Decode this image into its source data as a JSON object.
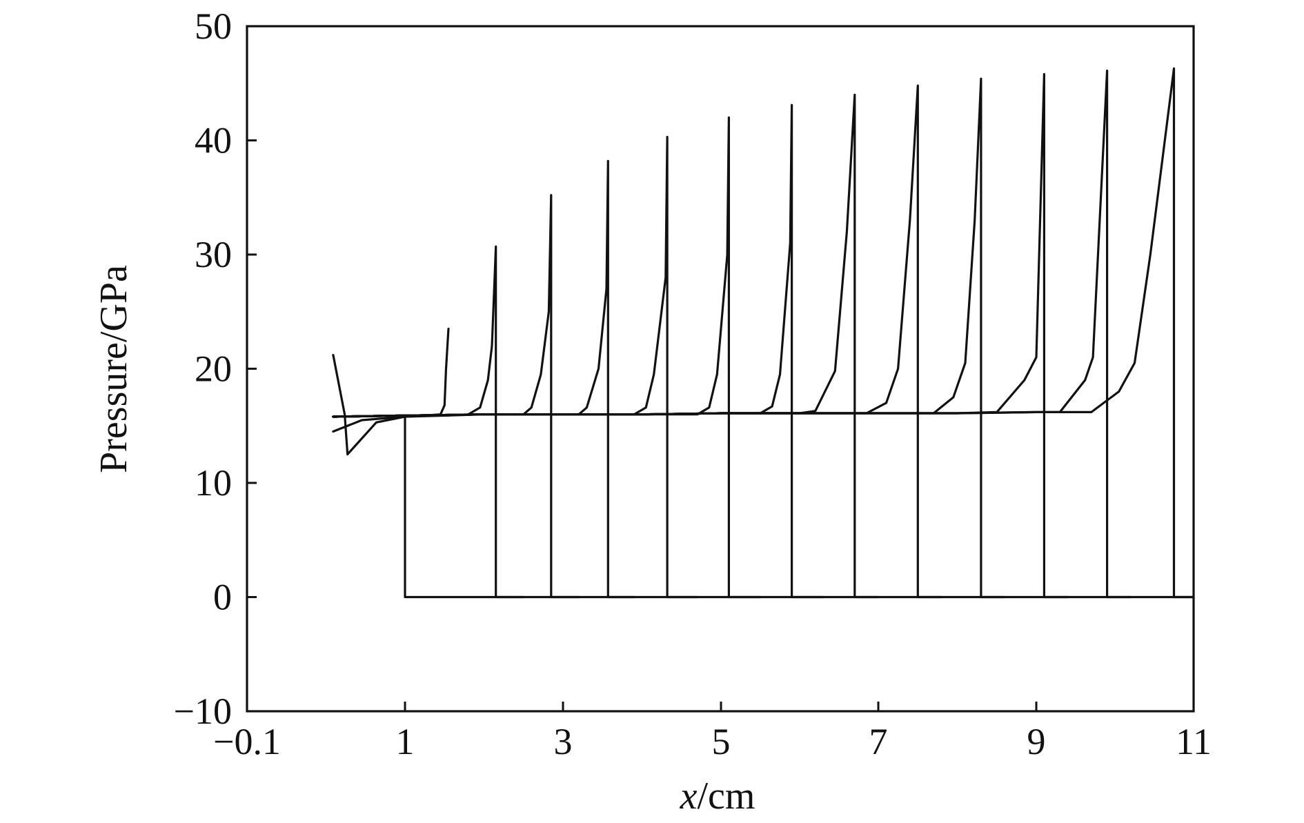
{
  "chart_data": {
    "type": "line",
    "xlabel_var": "x",
    "xlabel_unit": "/cm",
    "ylabel": "Pressure/GPa",
    "xlim": [
      -0.1,
      11
    ],
    "ylim": [
      -10,
      50
    ],
    "x_ticks": [
      {
        "value": -0.1,
        "label": "−0.1"
      },
      {
        "value": 1,
        "label": "1"
      },
      {
        "value": 3,
        "label": "3"
      },
      {
        "value": 5,
        "label": "5"
      },
      {
        "value": 7,
        "label": "7"
      },
      {
        "value": 9,
        "label": "9"
      },
      {
        "value": 11,
        "label": "11"
      }
    ],
    "y_ticks": [
      {
        "value": -10,
        "label": "−10"
      },
      {
        "value": 0,
        "label": "0"
      },
      {
        "value": 10,
        "label": "10"
      },
      {
        "value": 20,
        "label": "20"
      },
      {
        "value": 30,
        "label": "30"
      },
      {
        "value": 40,
        "label": "40"
      },
      {
        "value": 50,
        "label": "50"
      }
    ],
    "grid": false,
    "series": [
      {
        "x": [
          0.5,
          0.58,
          0.6,
          0.8,
          1.0,
          1.25,
          1.45,
          1.5,
          1.52,
          1.55
        ],
        "y": [
          21.2,
          16.0,
          12.5,
          15.3,
          15.8,
          15.9,
          16.0,
          16.8,
          20.0,
          23.5
        ]
      },
      {
        "x": [
          0.5,
          0.7,
          1.0,
          1.5,
          1.8,
          1.95,
          2.05,
          2.1,
          2.15,
          2.15,
          2.5
        ],
        "y": [
          14.5,
          15.5,
          15.8,
          15.9,
          16.0,
          16.6,
          19.0,
          22.0,
          30.7,
          0,
          0
        ]
      },
      {
        "x": [
          0.5,
          1.0,
          1.5,
          2.0,
          2.5,
          2.6,
          2.72,
          2.82,
          2.85,
          2.85,
          3.2
        ],
        "y": [
          15.8,
          15.9,
          15.9,
          16.0,
          16.0,
          16.6,
          19.5,
          25.0,
          35.2,
          0,
          0
        ]
      },
      {
        "x": [
          0.5,
          1.0,
          2.0,
          3.0,
          3.2,
          3.3,
          3.45,
          3.55,
          3.57,
          3.57,
          3.9
        ],
        "y": [
          15.8,
          15.9,
          16.0,
          16.0,
          16.0,
          16.6,
          20.0,
          27.0,
          38.2,
          0,
          0
        ]
      },
      {
        "x": [
          0.5,
          1.0,
          2.0,
          3.0,
          3.9,
          4.05,
          4.15,
          4.3,
          4.32,
          4.32,
          4.7
        ],
        "y": [
          15.8,
          15.9,
          16.0,
          16.0,
          16.0,
          16.6,
          19.5,
          28.0,
          40.3,
          0,
          0
        ]
      },
      {
        "x": [
          0.5,
          1.0,
          2.0,
          3.0,
          4.0,
          4.7,
          4.85,
          4.95,
          5.08,
          5.1,
          5.1,
          5.5
        ],
        "y": [
          15.8,
          15.9,
          16.0,
          16.0,
          16.0,
          16.0,
          16.6,
          19.5,
          30.0,
          42.0,
          0,
          0
        ]
      },
      {
        "x": [
          0.5,
          1.0,
          2.0,
          3.0,
          4.0,
          5.0,
          5.5,
          5.65,
          5.75,
          5.88,
          5.9,
          5.9,
          6.3
        ],
        "y": [
          15.8,
          15.9,
          16.0,
          16.0,
          16.0,
          16.1,
          16.1,
          16.7,
          19.5,
          31.0,
          43.1,
          0,
          0
        ]
      },
      {
        "x": [
          0.5,
          1.0,
          2.0,
          3.0,
          4.0,
          5.0,
          6.0,
          6.2,
          6.45,
          6.6,
          6.7,
          6.7,
          7.0
        ],
        "y": [
          15.8,
          15.9,
          16.0,
          16.0,
          16.0,
          16.1,
          16.1,
          16.3,
          19.8,
          32.0,
          44.0,
          0,
          0
        ]
      },
      {
        "x": [
          0.5,
          1.0,
          2.0,
          3.0,
          4.0,
          5.0,
          6.0,
          6.85,
          7.1,
          7.25,
          7.4,
          7.5,
          7.5,
          7.8
        ],
        "y": [
          15.8,
          15.9,
          16.0,
          16.0,
          16.0,
          16.1,
          16.1,
          16.1,
          17.0,
          20.0,
          33.0,
          44.8,
          0,
          0
        ]
      },
      {
        "x": [
          0.5,
          1.0,
          2.0,
          3.0,
          4.0,
          5.0,
          6.0,
          7.0,
          7.7,
          7.95,
          8.1,
          8.22,
          8.3,
          8.3,
          8.6
        ],
        "y": [
          15.8,
          15.9,
          16.0,
          16.0,
          16.0,
          16.1,
          16.1,
          16.1,
          16.1,
          17.5,
          20.5,
          33.0,
          45.4,
          0,
          0
        ]
      },
      {
        "x": [
          0.5,
          1.0,
          2.0,
          3.0,
          4.0,
          5.0,
          6.0,
          7.0,
          8.0,
          8.5,
          8.85,
          9.0,
          9.1,
          9.1,
          9.4
        ],
        "y": [
          15.8,
          15.9,
          16.0,
          16.0,
          16.0,
          16.1,
          16.1,
          16.1,
          16.1,
          16.2,
          19.0,
          21.0,
          45.8,
          0,
          0
        ]
      },
      {
        "x": [
          0.5,
          1.0,
          2.0,
          3.0,
          4.0,
          5.0,
          6.0,
          7.0,
          8.0,
          9.0,
          9.3,
          9.62,
          9.72,
          9.9,
          9.9,
          10.2
        ],
        "y": [
          15.8,
          15.9,
          16.0,
          16.0,
          16.0,
          16.1,
          16.1,
          16.1,
          16.1,
          16.2,
          16.2,
          19.0,
          21.0,
          46.1,
          0,
          0
        ]
      },
      {
        "x": [
          0.5,
          1.0,
          2.0,
          3.0,
          4.0,
          5.0,
          6.0,
          7.0,
          8.0,
          9.0,
          9.7,
          10.05,
          10.25,
          10.45,
          10.75,
          10.75,
          11.0
        ],
        "y": [
          15.8,
          15.9,
          16.0,
          16.0,
          16.0,
          16.1,
          16.1,
          16.1,
          16.1,
          16.2,
          16.2,
          18.0,
          20.5,
          30.0,
          46.3,
          0,
          0
        ]
      },
      {
        "x": [
          1.0,
          1.0,
          11.0
        ],
        "y": [
          15.8,
          0,
          0
        ]
      }
    ]
  }
}
